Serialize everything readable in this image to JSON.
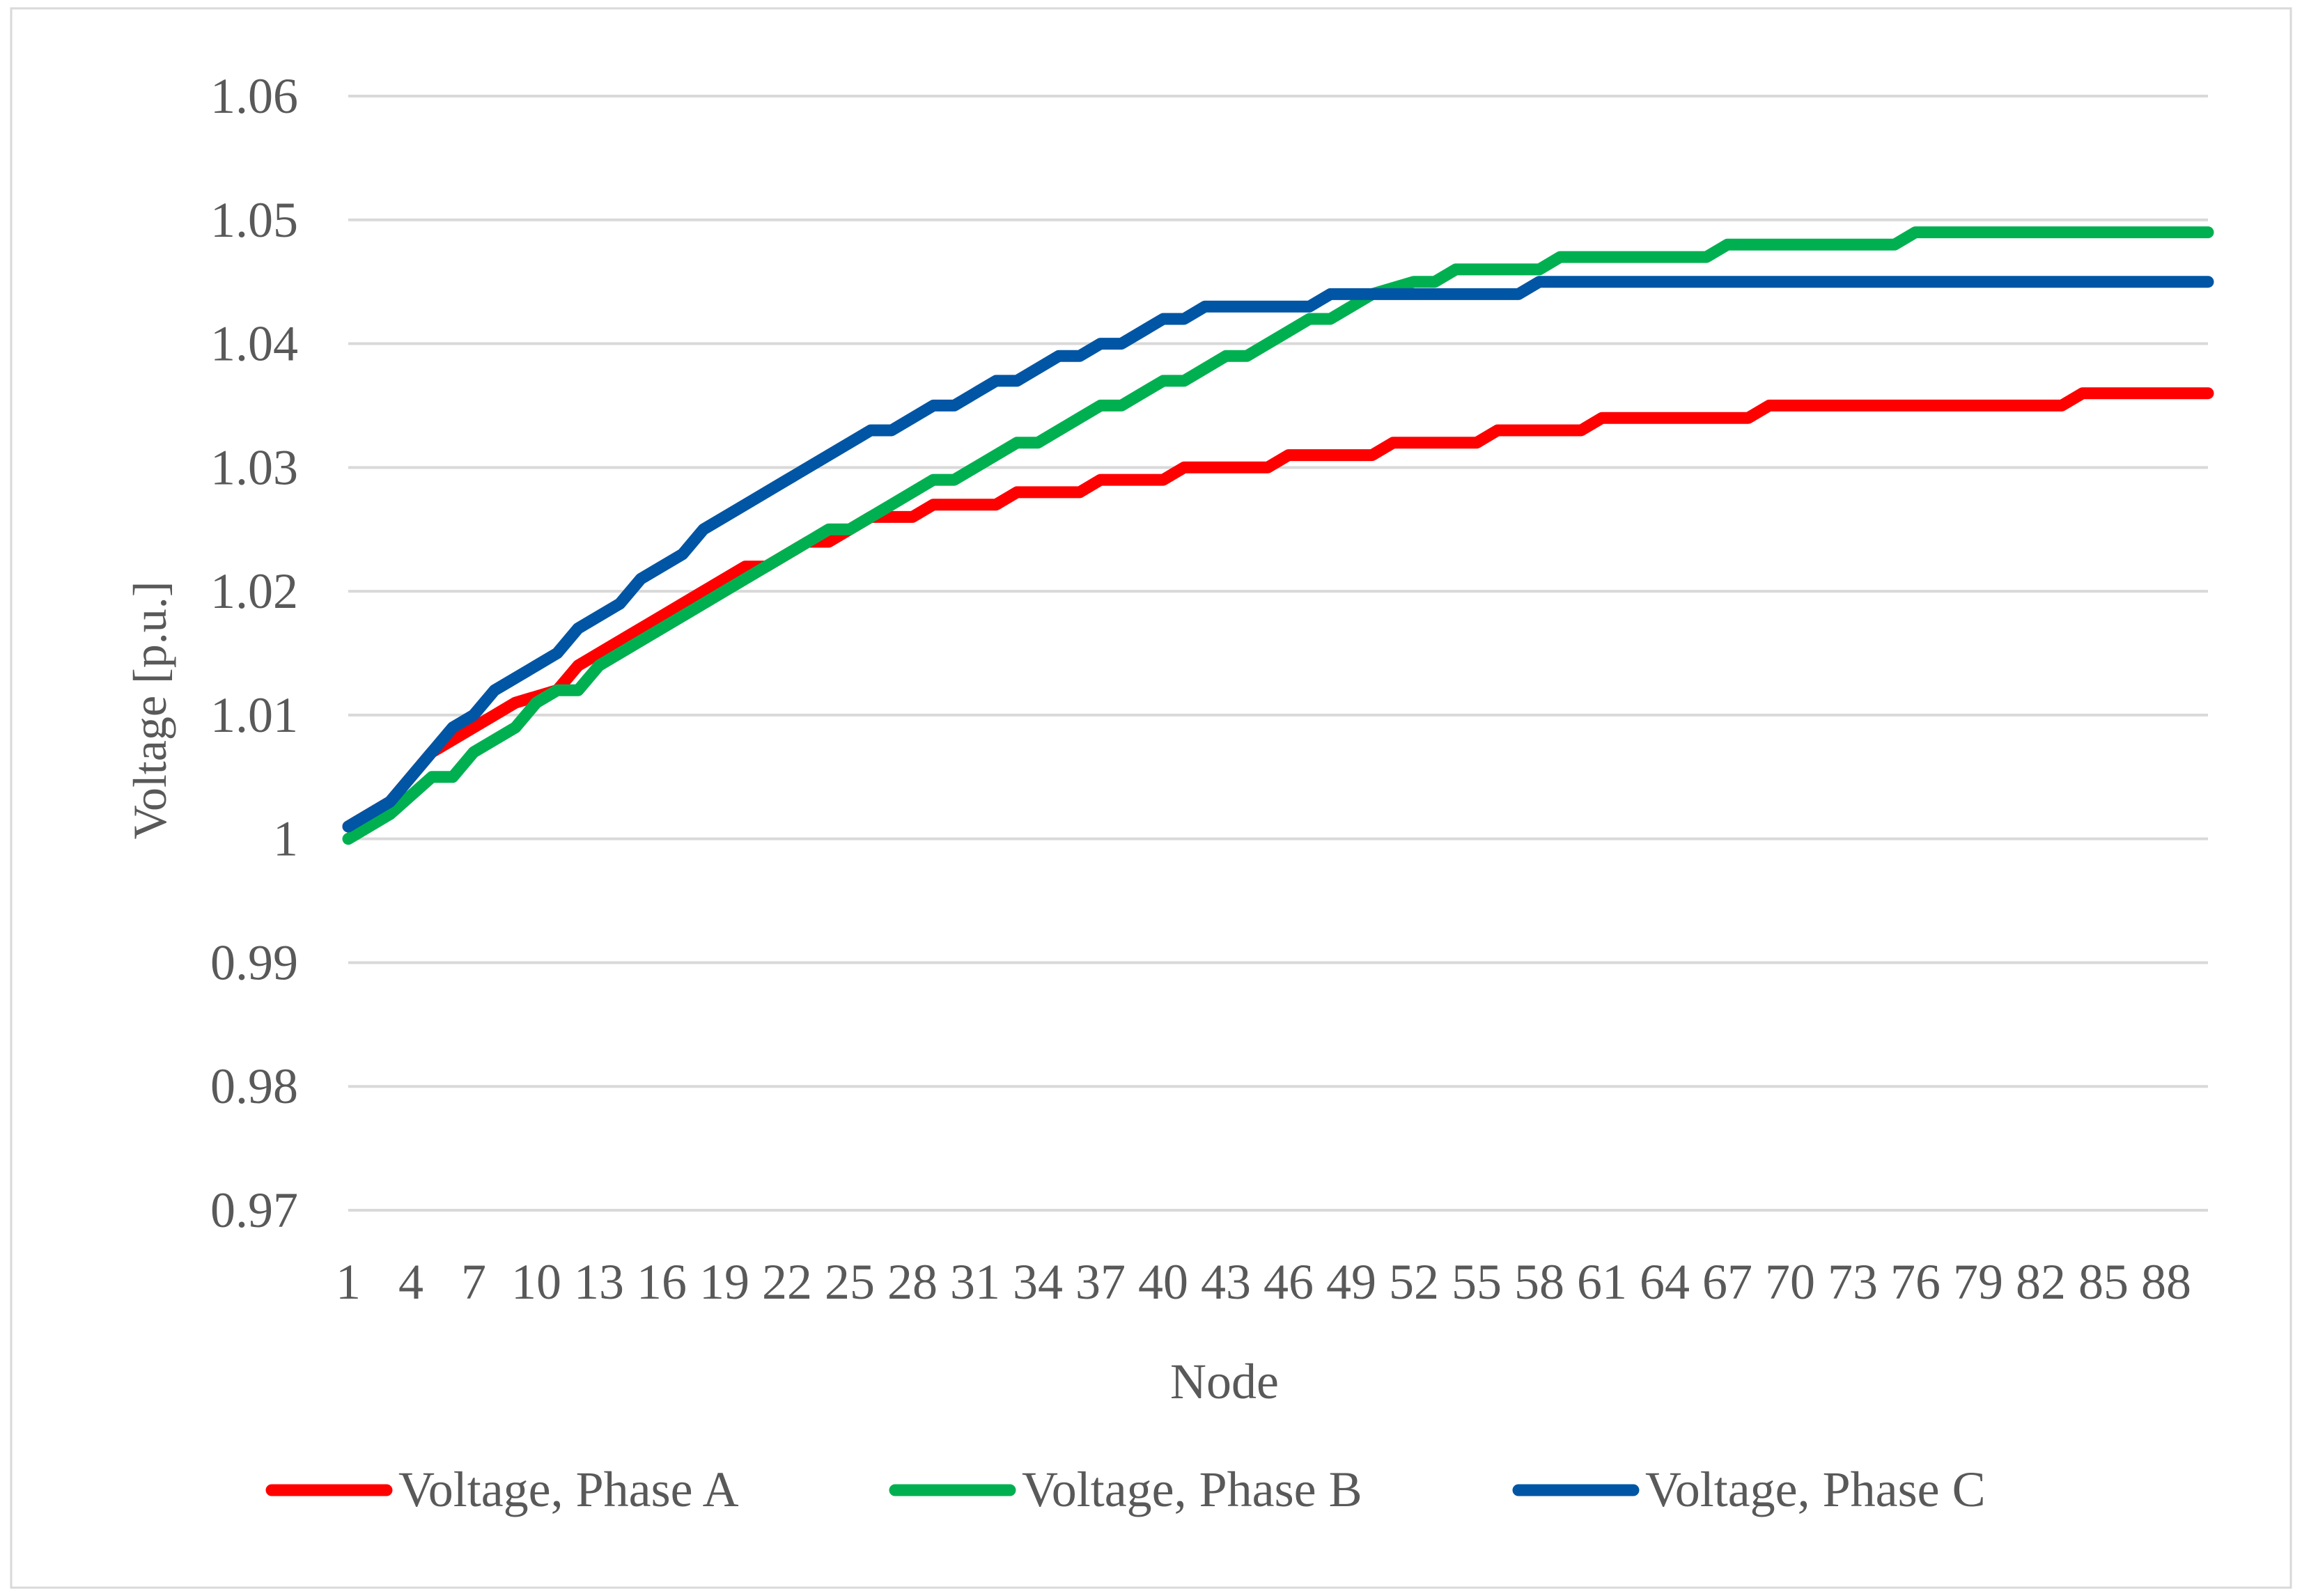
{
  "chart_data": {
    "type": "line",
    "title": "",
    "xlabel": "Node",
    "ylabel": "Voltage [p.u.]",
    "ylim": [
      0.97,
      1.06
    ],
    "yticks": [
      "0.97",
      "0.98",
      "0.99",
      "1",
      "1.01",
      "1.02",
      "1.03",
      "1.04",
      "1.05",
      "1.06"
    ],
    "x_range": [
      1,
      90
    ],
    "xtick_labels": [
      "1",
      "4",
      "7",
      "10",
      "13",
      "16",
      "19",
      "22",
      "25",
      "28",
      "31",
      "34",
      "37",
      "40",
      "43",
      "46",
      "49",
      "52",
      "55",
      "58",
      "61",
      "64",
      "67",
      "70",
      "73",
      "76",
      "79",
      "82",
      "85",
      "88"
    ],
    "grid": "horizontal",
    "legend_position": "bottom",
    "series": [
      {
        "name": "Voltage, Phase A",
        "color": "#FF0000",
        "points": [
          [
            1,
            1.001
          ],
          [
            3,
            1.003
          ],
          [
            5,
            1.007
          ],
          [
            7,
            1.009
          ],
          [
            8,
            1.01
          ],
          [
            9,
            1.011
          ],
          [
            11,
            1.012
          ],
          [
            12,
            1.014
          ],
          [
            14,
            1.016
          ],
          [
            16,
            1.018
          ],
          [
            18,
            1.02
          ],
          [
            20,
            1.022
          ],
          [
            21,
            1.022
          ],
          [
            23,
            1.024
          ],
          [
            24,
            1.024
          ],
          [
            26,
            1.026
          ],
          [
            28,
            1.026
          ],
          [
            29,
            1.027
          ],
          [
            32,
            1.027
          ],
          [
            33,
            1.028
          ],
          [
            36,
            1.028
          ],
          [
            37,
            1.029
          ],
          [
            40,
            1.029
          ],
          [
            41,
            1.03
          ],
          [
            45,
            1.03
          ],
          [
            46,
            1.031
          ],
          [
            50,
            1.031
          ],
          [
            51,
            1.032
          ],
          [
            55,
            1.032
          ],
          [
            56,
            1.033
          ],
          [
            60,
            1.033
          ],
          [
            61,
            1.034
          ],
          [
            68,
            1.034
          ],
          [
            69,
            1.035
          ],
          [
            83,
            1.035
          ],
          [
            84,
            1.036
          ],
          [
            90,
            1.036
          ]
        ]
      },
      {
        "name": "Voltage, Phase B",
        "color": "#00B050",
        "points": [
          [
            1,
            1.0
          ],
          [
            3,
            1.002
          ],
          [
            5,
            1.005
          ],
          [
            6,
            1.005
          ],
          [
            7,
            1.007
          ],
          [
            9,
            1.009
          ],
          [
            10,
            1.011
          ],
          [
            11,
            1.012
          ],
          [
            12,
            1.012
          ],
          [
            13,
            1.014
          ],
          [
            15,
            1.016
          ],
          [
            17,
            1.018
          ],
          [
            19,
            1.02
          ],
          [
            21,
            1.022
          ],
          [
            23,
            1.024
          ],
          [
            24,
            1.025
          ],
          [
            25,
            1.025
          ],
          [
            27,
            1.027
          ],
          [
            29,
            1.029
          ],
          [
            30,
            1.029
          ],
          [
            32,
            1.031
          ],
          [
            33,
            1.032
          ],
          [
            34,
            1.032
          ],
          [
            36,
            1.034
          ],
          [
            37,
            1.035
          ],
          [
            38,
            1.035
          ],
          [
            40,
            1.037
          ],
          [
            41,
            1.037
          ],
          [
            43,
            1.039
          ],
          [
            44,
            1.039
          ],
          [
            46,
            1.041
          ],
          [
            47,
            1.042
          ],
          [
            48,
            1.042
          ],
          [
            50,
            1.044
          ],
          [
            52,
            1.045
          ],
          [
            53,
            1.045
          ],
          [
            54,
            1.046
          ],
          [
            58,
            1.046
          ],
          [
            59,
            1.047
          ],
          [
            66,
            1.047
          ],
          [
            67,
            1.048
          ],
          [
            75,
            1.048
          ],
          [
            76,
            1.049
          ],
          [
            90,
            1.049
          ]
        ]
      },
      {
        "name": "Voltage, Phase C",
        "color": "#0055A4",
        "points": [
          [
            1,
            1.001
          ],
          [
            3,
            1.003
          ],
          [
            5,
            1.007
          ],
          [
            6,
            1.009
          ],
          [
            7,
            1.01
          ],
          [
            8,
            1.012
          ],
          [
            10,
            1.014
          ],
          [
            11,
            1.015
          ],
          [
            12,
            1.017
          ],
          [
            14,
            1.019
          ],
          [
            15,
            1.021
          ],
          [
            17,
            1.023
          ],
          [
            18,
            1.025
          ],
          [
            20,
            1.027
          ],
          [
            22,
            1.029
          ],
          [
            24,
            1.031
          ],
          [
            26,
            1.033
          ],
          [
            27,
            1.033
          ],
          [
            29,
            1.035
          ],
          [
            30,
            1.035
          ],
          [
            32,
            1.037
          ],
          [
            33,
            1.037
          ],
          [
            35,
            1.039
          ],
          [
            36,
            1.039
          ],
          [
            37,
            1.04
          ],
          [
            38,
            1.04
          ],
          [
            40,
            1.042
          ],
          [
            41,
            1.042
          ],
          [
            42,
            1.043
          ],
          [
            47,
            1.043
          ],
          [
            48,
            1.044
          ],
          [
            57,
            1.044
          ],
          [
            58,
            1.045
          ],
          [
            90,
            1.045
          ]
        ]
      }
    ]
  }
}
